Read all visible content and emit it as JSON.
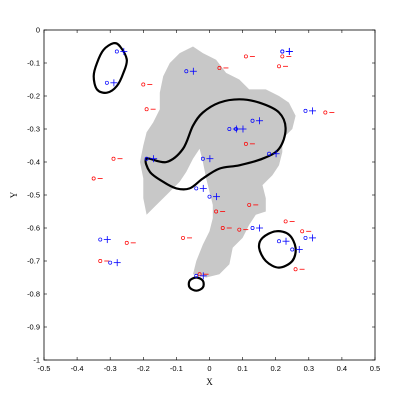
{
  "chart_data": {
    "type": "scatter",
    "xlabel": "X",
    "ylabel": "Y",
    "xlim": [
      -0.5,
      0.5
    ],
    "ylim": [
      -1,
      0
    ],
    "xticks": [
      -0.5,
      -0.4,
      -0.3,
      -0.2,
      -0.1,
      0,
      0.1,
      0.2,
      0.3,
      0.4,
      0.5
    ],
    "yticks": [
      0,
      -0.1,
      -0.2,
      -0.3,
      -0.4,
      -0.5,
      -0.6,
      -0.7,
      -0.8,
      -0.9,
      -1
    ],
    "xtick_labels": [
      "-0.5",
      "-0.4",
      "-0.3",
      "-0.2",
      "-0.1",
      "0",
      "0.1",
      "0.2",
      "0.3",
      "0.4",
      "0.5"
    ],
    "ytick_labels": [
      "0",
      "-0.1",
      "-0.2",
      "-0.3",
      "-0.4",
      "-0.5",
      "-0.6",
      "-0.7",
      "-0.8",
      "-0.9",
      "-1"
    ],
    "grid": false,
    "colors": {
      "region": "#c8c8c8",
      "boundary": "#000000",
      "blue": "#0000ff",
      "red": "#ff0000"
    },
    "shaded_region": [
      [
        -0.19,
        -0.56
      ],
      [
        -0.16,
        -0.53
      ],
      [
        -0.13,
        -0.5
      ],
      [
        -0.09,
        -0.46
      ],
      [
        -0.07,
        -0.43
      ],
      [
        -0.05,
        -0.39
      ],
      [
        -0.03,
        -0.36
      ],
      [
        -0.02,
        -0.4
      ],
      [
        -0.01,
        -0.45
      ],
      [
        0.0,
        -0.49
      ],
      [
        0.01,
        -0.53
      ],
      [
        0.01,
        -0.57
      ],
      [
        0.0,
        -0.61
      ],
      [
        -0.02,
        -0.65
      ],
      [
        -0.04,
        -0.7
      ],
      [
        -0.05,
        -0.74
      ],
      [
        -0.01,
        -0.75
      ],
      [
        0.03,
        -0.74
      ],
      [
        0.06,
        -0.71
      ],
      [
        0.07,
        -0.66
      ],
      [
        0.1,
        -0.63
      ],
      [
        0.12,
        -0.59
      ],
      [
        0.14,
        -0.56
      ],
      [
        0.17,
        -0.55
      ],
      [
        0.17,
        -0.51
      ],
      [
        0.16,
        -0.47
      ],
      [
        0.19,
        -0.44
      ],
      [
        0.21,
        -0.41
      ],
      [
        0.22,
        -0.37
      ],
      [
        0.22,
        -0.33
      ],
      [
        0.25,
        -0.3
      ],
      [
        0.26,
        -0.26
      ],
      [
        0.24,
        -0.22
      ],
      [
        0.21,
        -0.2
      ],
      [
        0.17,
        -0.18
      ],
      [
        0.12,
        -0.18
      ],
      [
        0.09,
        -0.15
      ],
      [
        0.05,
        -0.13
      ],
      [
        0.02,
        -0.09
      ],
      [
        -0.02,
        -0.07
      ],
      [
        -0.05,
        -0.05
      ],
      [
        -0.09,
        -0.07
      ],
      [
        -0.12,
        -0.1
      ],
      [
        -0.14,
        -0.14
      ],
      [
        -0.15,
        -0.19
      ],
      [
        -0.15,
        -0.24
      ],
      [
        -0.17,
        -0.28
      ],
      [
        -0.19,
        -0.31
      ],
      [
        -0.2,
        -0.35
      ],
      [
        -0.21,
        -0.4
      ],
      [
        -0.2,
        -0.45
      ],
      [
        -0.2,
        -0.51
      ]
    ],
    "boundary_curves": [
      [
        [
          -0.27,
          -0.05
        ],
        [
          -0.25,
          -0.09
        ],
        [
          -0.26,
          -0.13
        ],
        [
          -0.28,
          -0.17
        ],
        [
          -0.31,
          -0.19
        ],
        [
          -0.34,
          -0.18
        ],
        [
          -0.35,
          -0.14
        ],
        [
          -0.34,
          -0.1
        ],
        [
          -0.32,
          -0.06
        ],
        [
          -0.29,
          -0.04
        ]
      ],
      [
        [
          -0.19,
          -0.39
        ],
        [
          -0.13,
          -0.4
        ],
        [
          -0.08,
          -0.36
        ],
        [
          -0.05,
          -0.29
        ],
        [
          -0.02,
          -0.25
        ],
        [
          0.03,
          -0.22
        ],
        [
          0.09,
          -0.21
        ],
        [
          0.15,
          -0.22
        ],
        [
          0.21,
          -0.25
        ],
        [
          0.23,
          -0.3
        ],
        [
          0.21,
          -0.36
        ],
        [
          0.16,
          -0.39
        ],
        [
          0.09,
          -0.41
        ],
        [
          0.03,
          -0.42
        ],
        [
          -0.02,
          -0.45
        ],
        [
          -0.06,
          -0.48
        ],
        [
          -0.1,
          -0.48
        ],
        [
          -0.14,
          -0.46
        ],
        [
          -0.18,
          -0.43
        ]
      ],
      [
        [
          0.16,
          -0.63
        ],
        [
          0.2,
          -0.61
        ],
        [
          0.24,
          -0.62
        ],
        [
          0.26,
          -0.66
        ],
        [
          0.25,
          -0.7
        ],
        [
          0.21,
          -0.72
        ],
        [
          0.17,
          -0.7
        ],
        [
          0.15,
          -0.66
        ]
      ],
      [
        [
          -0.04,
          -0.75
        ],
        [
          -0.02,
          -0.76
        ],
        [
          -0.02,
          -0.78
        ],
        [
          -0.04,
          -0.79
        ],
        [
          -0.06,
          -0.78
        ],
        [
          -0.06,
          -0.76
        ]
      ]
    ],
    "blue_points": [
      [
        -0.28,
        -0.065
      ],
      [
        -0.31,
        -0.16
      ],
      [
        -0.07,
        -0.125
      ],
      [
        -0.02,
        -0.39
      ],
      [
        -0.19,
        -0.39
      ],
      [
        -0.04,
        -0.48
      ],
      [
        0.06,
        -0.3
      ],
      [
        0.08,
        -0.3
      ],
      [
        0.13,
        -0.275
      ],
      [
        0.18,
        -0.375
      ],
      [
        0.29,
        -0.245
      ],
      [
        0.22,
        -0.065
      ],
      [
        0.0,
        -0.505
      ],
      [
        0.13,
        -0.6
      ],
      [
        0.21,
        -0.64
      ],
      [
        0.29,
        -0.63
      ],
      [
        0.25,
        -0.665
      ],
      [
        -0.33,
        -0.635
      ],
      [
        -0.3,
        -0.705
      ],
      [
        -0.04,
        -0.745
      ],
      [
        0.22,
        -0.065
      ]
    ],
    "red_points": [
      [
        -0.2,
        -0.165
      ],
      [
        -0.19,
        -0.24
      ],
      [
        -0.29,
        -0.39
      ],
      [
        -0.35,
        -0.45
      ],
      [
        0.03,
        -0.115
      ],
      [
        0.11,
        -0.08
      ],
      [
        0.21,
        -0.11
      ],
      [
        0.22,
        -0.08
      ],
      [
        0.35,
        -0.25
      ],
      [
        0.11,
        -0.345
      ],
      [
        0.12,
        -0.53
      ],
      [
        0.02,
        -0.55
      ],
      [
        0.04,
        -0.6
      ],
      [
        0.23,
        -0.58
      ],
      [
        0.28,
        -0.61
      ],
      [
        0.26,
        -0.725
      ],
      [
        -0.08,
        -0.63
      ],
      [
        -0.25,
        -0.645
      ],
      [
        -0.33,
        -0.7
      ],
      [
        -0.03,
        -0.74
      ],
      [
        0.09,
        -0.605
      ]
    ]
  }
}
